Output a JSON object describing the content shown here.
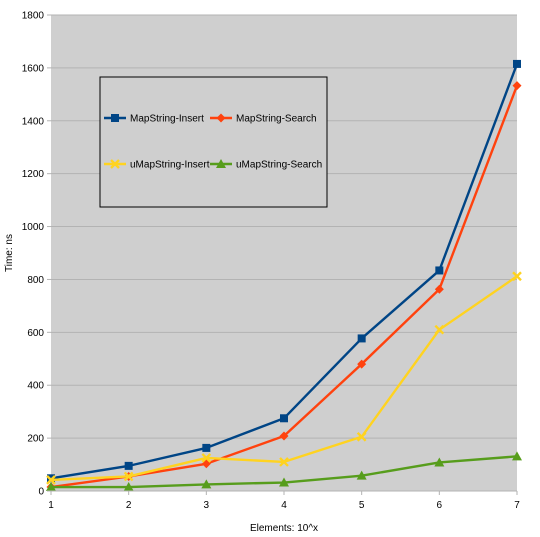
{
  "chart_data": {
    "type": "line",
    "title": "",
    "xlabel": "Elements: 10^x",
    "ylabel": "Time: ns",
    "x": [
      1,
      2,
      3,
      4,
      5,
      6,
      7
    ],
    "xlim": [
      1,
      7
    ],
    "ylim": [
      0,
      1800
    ],
    "y_ticks": [
      0,
      200,
      400,
      600,
      800,
      1000,
      1200,
      1400,
      1600,
      1800
    ],
    "grid": "horizontal",
    "legend_position": "top-left",
    "series": [
      {
        "name": "MapString-Insert",
        "color": "#004586",
        "marker": "square",
        "values": [
          48,
          95,
          163,
          275,
          577,
          834,
          1615
        ]
      },
      {
        "name": "MapString-Search",
        "color": "#ff420e",
        "marker": "diamond",
        "values": [
          15,
          55,
          103,
          208,
          480,
          763,
          1533
        ]
      },
      {
        "name": "uMapString-Insert",
        "color": "#ffd320",
        "marker": "cross",
        "values": [
          42,
          55,
          125,
          110,
          205,
          610,
          812
        ]
      },
      {
        "name": "uMapString-Search",
        "color": "#579d1c",
        "marker": "triangle",
        "values": [
          15,
          15,
          25,
          32,
          58,
          108,
          131
        ]
      }
    ]
  }
}
